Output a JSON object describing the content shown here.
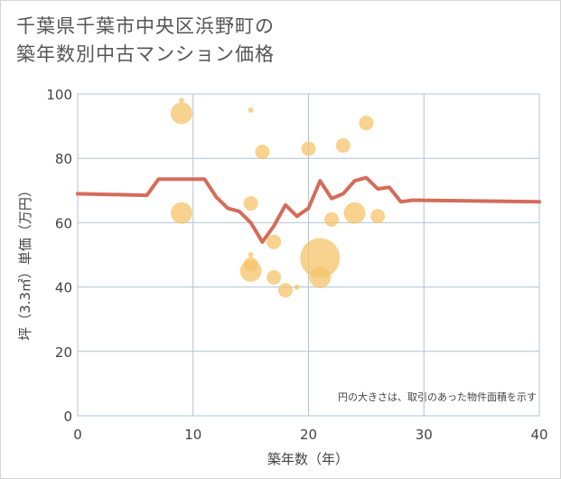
{
  "title_line1": "千葉県千葉市中央区浜野町の",
  "title_line2": "築年数別中古マンション価格",
  "chart_data": {
    "type": "scatter",
    "title": "千葉県千葉市中央区浜野町の築年数別中古マンション価格",
    "xlabel": "築年数（年）",
    "ylabel": "坪（3.3㎡）単価（万円）",
    "xlim": [
      0,
      40
    ],
    "ylim": [
      0,
      100
    ],
    "xticks": [
      0,
      10,
      20,
      30,
      40
    ],
    "yticks": [
      0,
      20,
      40,
      60,
      80,
      100
    ],
    "note": "円の大きさは、取引のあった物件面積を示す",
    "colors": {
      "bubble": "#f4c46a",
      "line": "#d46c5a",
      "grid": "#b0c4d4"
    },
    "bubbles": [
      {
        "x": 9,
        "y": 98,
        "size": 3
      },
      {
        "x": 9,
        "y": 94,
        "size": 12
      },
      {
        "x": 9,
        "y": 63,
        "size": 12
      },
      {
        "x": 15,
        "y": 95,
        "size": 3
      },
      {
        "x": 15,
        "y": 66,
        "size": 8
      },
      {
        "x": 15,
        "y": 50,
        "size": 3
      },
      {
        "x": 15,
        "y": 47,
        "size": 8
      },
      {
        "x": 15,
        "y": 45,
        "size": 12
      },
      {
        "x": 16,
        "y": 82,
        "size": 8
      },
      {
        "x": 17,
        "y": 54,
        "size": 8
      },
      {
        "x": 17,
        "y": 43,
        "size": 8
      },
      {
        "x": 18,
        "y": 39,
        "size": 8
      },
      {
        "x": 19,
        "y": 40,
        "size": 3
      },
      {
        "x": 20,
        "y": 83,
        "size": 8
      },
      {
        "x": 21,
        "y": 49,
        "size": 22
      },
      {
        "x": 21,
        "y": 43,
        "size": 12
      },
      {
        "x": 22,
        "y": 61,
        "size": 8
      },
      {
        "x": 23,
        "y": 84,
        "size": 8
      },
      {
        "x": 24,
        "y": 63,
        "size": 12
      },
      {
        "x": 25,
        "y": 91,
        "size": 8
      },
      {
        "x": 26,
        "y": 62,
        "size": 8
      }
    ],
    "line": {
      "x": [
        0,
        6,
        7,
        8,
        10,
        11,
        12,
        13,
        14,
        15,
        16,
        17,
        18,
        19,
        20,
        21,
        22,
        23,
        24,
        25,
        26,
        27,
        28,
        29,
        40
      ],
      "y": [
        69,
        68.5,
        73.5,
        73.5,
        73.5,
        73.5,
        68,
        64.5,
        63.5,
        60,
        54,
        59,
        65.5,
        62,
        64.5,
        73,
        67.5,
        69,
        73,
        74,
        70.5,
        71,
        66.5,
        67,
        66.5
      ]
    }
  }
}
